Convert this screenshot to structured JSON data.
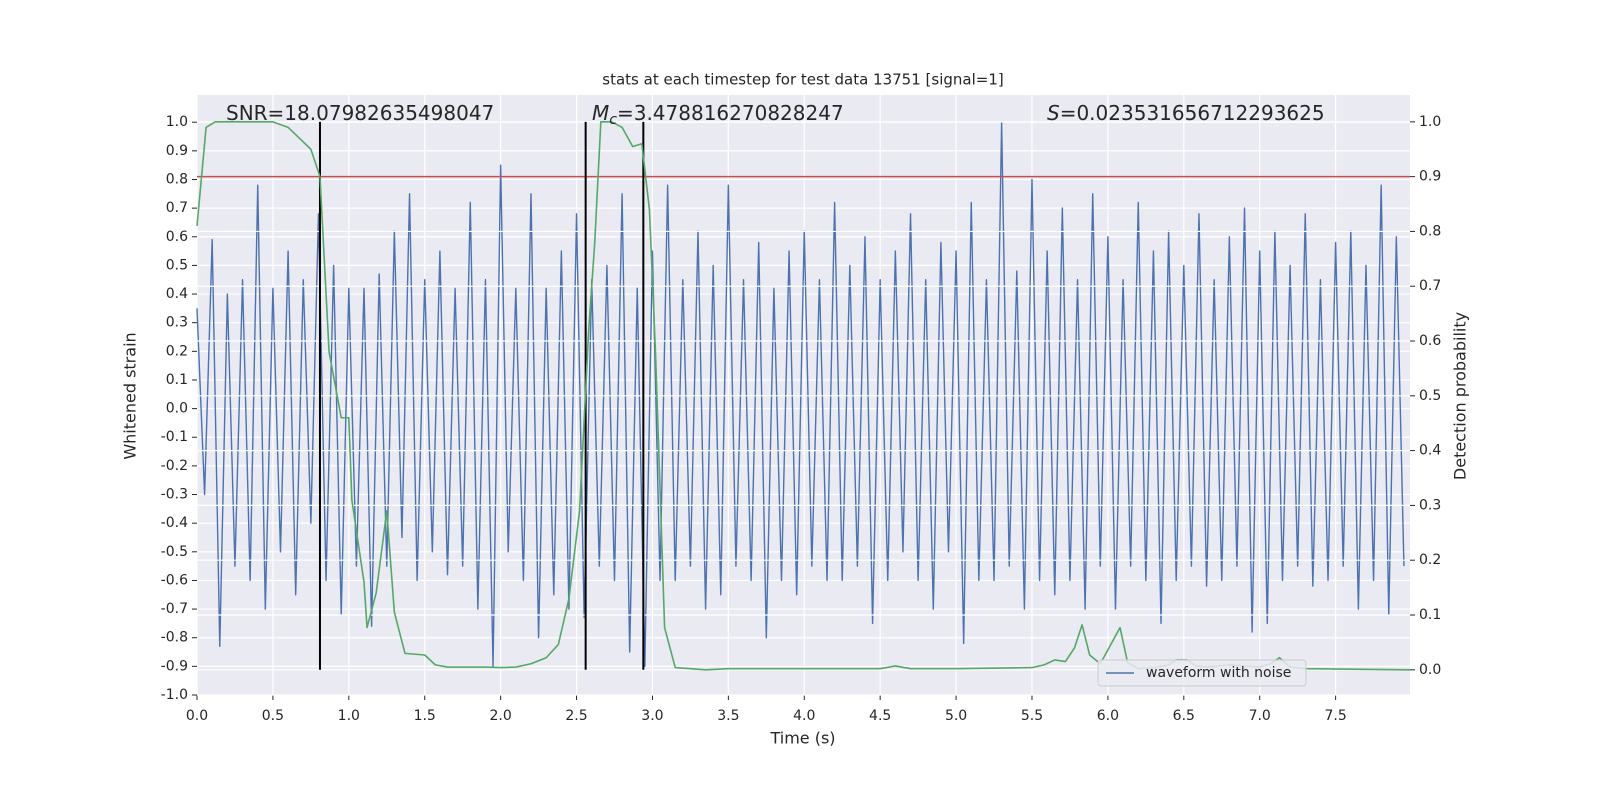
{
  "chart_data": {
    "type": "line",
    "title": "stats at each timestep for test data 13751 [signal=1]",
    "xlabel": "Time (s)",
    "ylabel": "Whitened strain",
    "y2label": "Detection probability",
    "xlim": [
      0,
      7.99
    ],
    "ylim": [
      -1.0,
      1.095
    ],
    "y2lim": [
      -0.046,
      1.049
    ],
    "xticks": [
      {
        "value": 0,
        "label": "0.0"
      },
      0.5,
      {
        "value": 1,
        "label": "1.0"
      },
      1.5,
      {
        "value": 2,
        "label": "2.0"
      },
      2.5,
      {
        "value": 3,
        "label": "3.0"
      },
      3.5,
      {
        "value": 4,
        "label": "4.0"
      },
      4.5,
      {
        "value": 5,
        "label": "5.0"
      },
      5.5,
      {
        "value": 6,
        "label": "6.0"
      },
      6.5,
      {
        "value": 7,
        "label": "7.0"
      },
      7.5
    ],
    "yticks": [
      {
        "value": -1,
        "label": "-1.0"
      },
      -0.9,
      -0.8,
      -0.7,
      -0.6,
      -0.5,
      -0.4,
      -0.3,
      -0.2,
      -0.1,
      {
        "value": 0,
        "label": "0.0"
      },
      0.1,
      0.2,
      0.3,
      0.4,
      0.5,
      0.6,
      0.7,
      0.8,
      0.9,
      {
        "value": 1,
        "label": "1.0"
      }
    ],
    "y2ticks": [
      {
        "value": 0,
        "label": "0.0"
      },
      0.1,
      0.2,
      0.3,
      0.4,
      0.5,
      0.6,
      0.7,
      0.8,
      0.9,
      {
        "value": 1,
        "label": "1.0"
      }
    ],
    "grid": true,
    "legend": "lower right",
    "annotations": [
      {
        "text": "SNR=18.07982635498047"
      },
      {
        "symbol": "M",
        "subscript": "c",
        "text": "=3.478816270828247"
      },
      {
        "symbol": "S",
        "text": "=0.023531656712293625"
      }
    ],
    "hlines": [
      {
        "value": 0.9,
        "axis": "y2",
        "color": "#c44e52"
      }
    ],
    "vlines": {
      "x": [
        0.81,
        2.56,
        2.94
      ],
      "ymin": 0,
      "ymax": 1,
      "axis": "y2",
      "color": "#000000"
    },
    "series": [
      {
        "name": "waveform with noise",
        "color": "#4c72b0",
        "axis": "y",
        "x": [
          0,
          0.05,
          0.1,
          0.15,
          0.2,
          0.25,
          0.3,
          0.35,
          0.4,
          0.45,
          0.5,
          0.55,
          0.6,
          0.65,
          0.7,
          0.75,
          0.8,
          0.85,
          0.9,
          0.95,
          1,
          1.05,
          1.1,
          1.15,
          1.2,
          1.25,
          1.3,
          1.35,
          1.4,
          1.45,
          1.5,
          1.55,
          1.6,
          1.65,
          1.7,
          1.75,
          1.8,
          1.85,
          1.9,
          1.95,
          2,
          2.05,
          2.1,
          2.15,
          2.2,
          2.25,
          2.3,
          2.35,
          2.4,
          2.45,
          2.5,
          2.55,
          2.6,
          2.65,
          2.7,
          2.75,
          2.8,
          2.85,
          2.9,
          2.95,
          3,
          3.05,
          3.1,
          3.15,
          3.2,
          3.25,
          3.3,
          3.35,
          3.4,
          3.45,
          3.5,
          3.55,
          3.6,
          3.65,
          3.7,
          3.75,
          3.8,
          3.85,
          3.9,
          3.95,
          4,
          4.05,
          4.1,
          4.15,
          4.2,
          4.25,
          4.3,
          4.35,
          4.4,
          4.45,
          4.5,
          4.55,
          4.6,
          4.65,
          4.7,
          4.75,
          4.8,
          4.85,
          4.9,
          4.95,
          5,
          5.05,
          5.1,
          5.15,
          5.2,
          5.25,
          5.3,
          5.35,
          5.4,
          5.45,
          5.5,
          5.55,
          5.6,
          5.65,
          5.7,
          5.75,
          5.8,
          5.85,
          5.9,
          5.95,
          6,
          6.05,
          6.1,
          6.15,
          6.2,
          6.25,
          6.3,
          6.35,
          6.4,
          6.45,
          6.5,
          6.55,
          6.6,
          6.65,
          6.7,
          6.75,
          6.8,
          6.85,
          6.9,
          6.95,
          7,
          7.05,
          7.1,
          7.15,
          7.2,
          7.25,
          7.3,
          7.35,
          7.4,
          7.45,
          7.5,
          7.55,
          7.6,
          7.65,
          7.7,
          7.75,
          7.8,
          7.85,
          7.9,
          7.95
        ],
        "values": [
          0.35,
          -0.3,
          0.59,
          -0.83,
          0.4,
          -0.55,
          0.45,
          -0.6,
          0.78,
          -0.7,
          0.42,
          -0.5,
          0.55,
          -0.65,
          0.45,
          -0.4,
          0.68,
          -0.6,
          0.5,
          -0.72,
          0.42,
          -0.55,
          0.42,
          -0.76,
          0.47,
          -0.55,
          0.62,
          -0.45,
          0.75,
          -0.6,
          0.45,
          -0.5,
          0.55,
          -0.58,
          0.42,
          -0.55,
          0.72,
          -0.7,
          0.45,
          -0.9,
          0.85,
          -0.5,
          0.42,
          -0.6,
          0.75,
          -0.8,
          0.42,
          -0.65,
          0.55,
          -0.7,
          0.68,
          -0.73,
          0.45,
          -0.55,
          0.5,
          -0.6,
          0.75,
          -0.85,
          0.42,
          -0.9,
          0.55,
          -0.6,
          0.78,
          -0.6,
          0.45,
          -0.55,
          0.62,
          -0.7,
          0.5,
          -0.65,
          0.78,
          -0.55,
          0.45,
          -0.6,
          0.58,
          -0.8,
          0.42,
          -0.6,
          0.55,
          -0.65,
          0.62,
          -0.55,
          0.45,
          -0.6,
          0.72,
          -0.6,
          0.5,
          -0.55,
          0.6,
          -0.75,
          0.45,
          -0.6,
          0.55,
          -0.5,
          0.68,
          -0.6,
          0.45,
          -0.7,
          0.58,
          -0.5,
          0.55,
          -0.82,
          0.72,
          -0.6,
          0.45,
          -0.6,
          1.0,
          -0.55,
          0.48,
          -0.7,
          0.8,
          -0.6,
          0.55,
          -0.65,
          0.7,
          -0.6,
          0.45,
          -0.7,
          0.75,
          -0.55,
          0.6,
          -0.7,
          0.45,
          -0.55,
          0.72,
          -0.6,
          0.55,
          -0.75,
          0.62,
          -0.6,
          0.5,
          -0.55,
          0.68,
          -0.62,
          0.45,
          -0.6,
          0.6,
          -0.55,
          0.7,
          -0.78,
          0.55,
          -0.75,
          0.62,
          -0.6,
          0.5,
          -0.55,
          0.68,
          -0.62,
          0.45,
          -0.6,
          0.58,
          -0.55,
          0.62,
          -0.7,
          0.5,
          -0.6,
          0.78,
          -0.72,
          0.6,
          -0.55
        ]
      },
      {
        "color": "#55a868",
        "axis": "y2",
        "x": [
          0,
          0.06,
          0.12,
          0.5,
          0.6,
          0.75,
          0.81,
          0.87,
          0.95,
          1.0,
          1.02,
          1.1,
          1.12,
          1.18,
          1.25,
          1.3,
          1.37,
          1.5,
          1.57,
          1.65,
          1.9,
          2.0,
          2.1,
          2.2,
          2.3,
          2.38,
          2.45,
          2.52,
          2.58,
          2.62,
          2.66,
          2.73,
          2.8,
          2.87,
          2.93,
          2.98,
          3.02,
          3.05,
          3.08,
          3.15,
          3.35,
          3.5,
          4.0,
          4.5,
          4.6,
          4.7,
          5.0,
          5.5,
          5.58,
          5.65,
          5.72,
          5.78,
          5.83,
          5.88,
          5.95,
          6.08,
          6.13,
          6.2,
          6.3,
          6.4,
          6.45,
          6.52,
          6.58,
          6.65,
          6.8,
          7.0,
          7.07,
          7.13,
          7.2,
          7.3,
          7.99
        ],
        "values": [
          0.81,
          0.99,
          1.0,
          1.0,
          0.99,
          0.95,
          0.9,
          0.58,
          0.46,
          0.46,
          0.31,
          0.16,
          0.077,
          0.14,
          0.29,
          0.105,
          0.03,
          0.027,
          0.009,
          0.005,
          0.005,
          0.004,
          0.005,
          0.011,
          0.022,
          0.046,
          0.13,
          0.29,
          0.62,
          0.78,
          1.0,
          1.0,
          0.99,
          0.955,
          0.96,
          0.84,
          0.58,
          0.33,
          0.077,
          0.004,
          0.0,
          0.002,
          0.002,
          0.002,
          0.007,
          0.002,
          0.002,
          0.004,
          0.009,
          0.018,
          0.015,
          0.04,
          0.082,
          0.027,
          0.011,
          0.077,
          0.013,
          0.002,
          0.004,
          0.009,
          0.018,
          0.018,
          0.007,
          0.005,
          0.009,
          0.005,
          0.011,
          0.022,
          0.005,
          0.002,
          0.0
        ]
      }
    ]
  }
}
